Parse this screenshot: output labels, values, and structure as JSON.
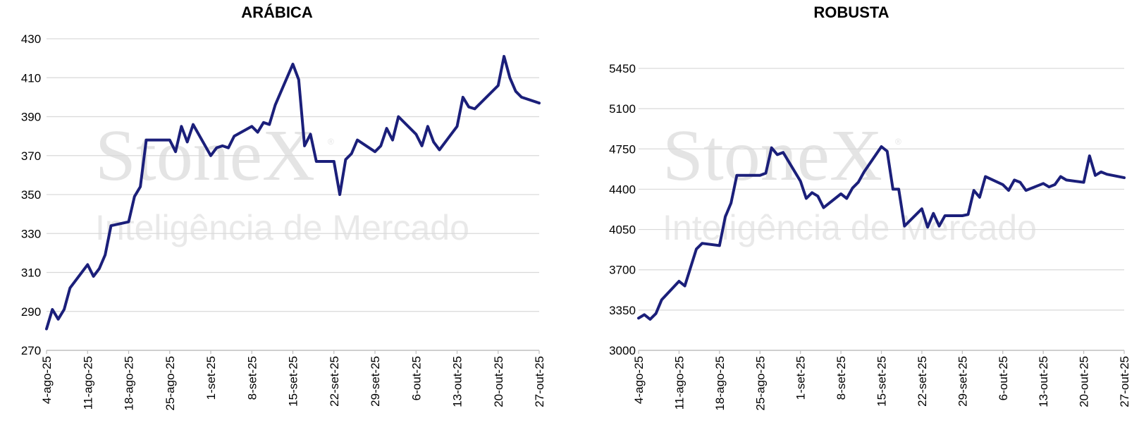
{
  "watermark": {
    "brand": "StoneX",
    "registered": "®",
    "subtitle": "Inteligência de Mercado"
  },
  "colors": {
    "line": "#1b1f7a",
    "grid": "#d9d9d9",
    "axis": "#bfbfbf"
  },
  "chart_data": [
    {
      "type": "line",
      "title": "ARÁBICA",
      "xlabel": "",
      "ylabel": "",
      "ylim": [
        270,
        430
      ],
      "yticks": [
        "430",
        "410",
        "390",
        "370",
        "350",
        "330",
        "310",
        "290",
        "270"
      ],
      "ytick_values": [
        430,
        410,
        390,
        370,
        350,
        330,
        310,
        290,
        270
      ],
      "xticks": [
        "4-ago-25",
        "11-ago-25",
        "18-ago-25",
        "25-ago-25",
        "1-set-25",
        "8-set-25",
        "15-set-25",
        "22-set-25",
        "29-set-25",
        "6-out-25",
        "13-out-25",
        "20-out-25",
        "27-out-25"
      ],
      "grid": true,
      "series": [
        {
          "x": [
            "2025-08-04",
            "2025-08-05",
            "2025-08-06",
            "2025-08-07",
            "2025-08-08",
            "2025-08-11",
            "2025-08-12",
            "2025-08-13",
            "2025-08-14",
            "2025-08-15",
            "2025-08-18",
            "2025-08-19",
            "2025-08-20",
            "2025-08-21",
            "2025-08-22",
            "2025-08-25",
            "2025-08-26",
            "2025-08-27",
            "2025-08-28",
            "2025-08-29",
            "2025-09-01",
            "2025-09-02",
            "2025-09-03",
            "2025-09-04",
            "2025-09-05",
            "2025-09-08",
            "2025-09-09",
            "2025-09-10",
            "2025-09-11",
            "2025-09-12",
            "2025-09-15",
            "2025-09-16",
            "2025-09-17",
            "2025-09-18",
            "2025-09-19",
            "2025-09-22",
            "2025-09-23",
            "2025-09-24",
            "2025-09-25",
            "2025-09-26",
            "2025-09-29",
            "2025-09-30",
            "2025-10-01",
            "2025-10-02",
            "2025-10-03",
            "2025-10-06",
            "2025-10-07",
            "2025-10-08",
            "2025-10-09",
            "2025-10-10",
            "2025-10-13",
            "2025-10-14",
            "2025-10-15",
            "2025-10-16",
            "2025-10-17",
            "2025-10-20",
            "2025-10-21",
            "2025-10-22",
            "2025-10-23",
            "2025-10-24",
            "2025-10-27"
          ],
          "y": [
            281,
            291,
            286,
            291,
            302,
            314,
            308,
            312,
            319,
            334,
            336,
            349,
            354,
            378,
            378,
            378,
            372,
            385,
            377,
            386,
            370,
            374,
            375,
            374,
            380,
            385,
            382,
            387,
            386,
            396,
            417,
            409,
            375,
            381,
            367,
            367,
            350,
            368,
            371,
            378,
            372,
            375,
            384,
            378,
            390,
            381,
            375,
            385,
            377,
            373,
            385,
            400,
            395,
            394,
            397,
            406,
            421,
            410,
            403,
            400,
            397
          ]
        }
      ]
    },
    {
      "type": "line",
      "title": "ROBUSTA",
      "xlabel": "",
      "ylabel": "",
      "ylim": [
        3000,
        5450
      ],
      "yticks": [
        "5450",
        "5100",
        "4750",
        "4400",
        "4050",
        "3700",
        "3350",
        "3000"
      ],
      "ytick_values": [
        5450,
        5100,
        4750,
        4400,
        4050,
        3700,
        3350,
        3000
      ],
      "xticks": [
        "4-ago-25",
        "11-ago-25",
        "18-ago-25",
        "25-ago-25",
        "1-set-25",
        "8-set-25",
        "15-set-25",
        "22-set-25",
        "29-set-25",
        "6-out-25",
        "13-out-25",
        "20-out-25",
        "27-out-25"
      ],
      "grid": true,
      "series": [
        {
          "x": [
            "2025-08-04",
            "2025-08-05",
            "2025-08-06",
            "2025-08-07",
            "2025-08-08",
            "2025-08-11",
            "2025-08-12",
            "2025-08-13",
            "2025-08-14",
            "2025-08-15",
            "2025-08-18",
            "2025-08-19",
            "2025-08-20",
            "2025-08-21",
            "2025-08-22",
            "2025-08-25",
            "2025-08-26",
            "2025-08-27",
            "2025-08-28",
            "2025-08-29",
            "2025-09-01",
            "2025-09-02",
            "2025-09-03",
            "2025-09-04",
            "2025-09-05",
            "2025-09-08",
            "2025-09-09",
            "2025-09-10",
            "2025-09-11",
            "2025-09-12",
            "2025-09-15",
            "2025-09-16",
            "2025-09-17",
            "2025-09-18",
            "2025-09-19",
            "2025-09-22",
            "2025-09-23",
            "2025-09-24",
            "2025-09-25",
            "2025-09-26",
            "2025-09-29",
            "2025-09-30",
            "2025-10-01",
            "2025-10-02",
            "2025-10-03",
            "2025-10-06",
            "2025-10-07",
            "2025-10-08",
            "2025-10-09",
            "2025-10-10",
            "2025-10-13",
            "2025-10-14",
            "2025-10-15",
            "2025-10-16",
            "2025-10-17",
            "2025-10-20",
            "2025-10-21",
            "2025-10-22",
            "2025-10-23",
            "2025-10-24",
            "2025-10-27"
          ],
          "y": [
            3280,
            3310,
            3270,
            3320,
            3440,
            3600,
            3560,
            3720,
            3880,
            3930,
            3910,
            4160,
            4280,
            4520,
            4520,
            4520,
            4540,
            4760,
            4700,
            4720,
            4470,
            4320,
            4370,
            4340,
            4240,
            4360,
            4320,
            4410,
            4460,
            4550,
            4770,
            4730,
            4400,
            4400,
            4080,
            4230,
            4070,
            4190,
            4080,
            4170,
            4170,
            4180,
            4390,
            4330,
            4510,
            4440,
            4390,
            4480,
            4460,
            4390,
            4450,
            4420,
            4440,
            4510,
            4480,
            4460,
            4690,
            4520,
            4550,
            4530,
            4500
          ]
        }
      ]
    }
  ]
}
